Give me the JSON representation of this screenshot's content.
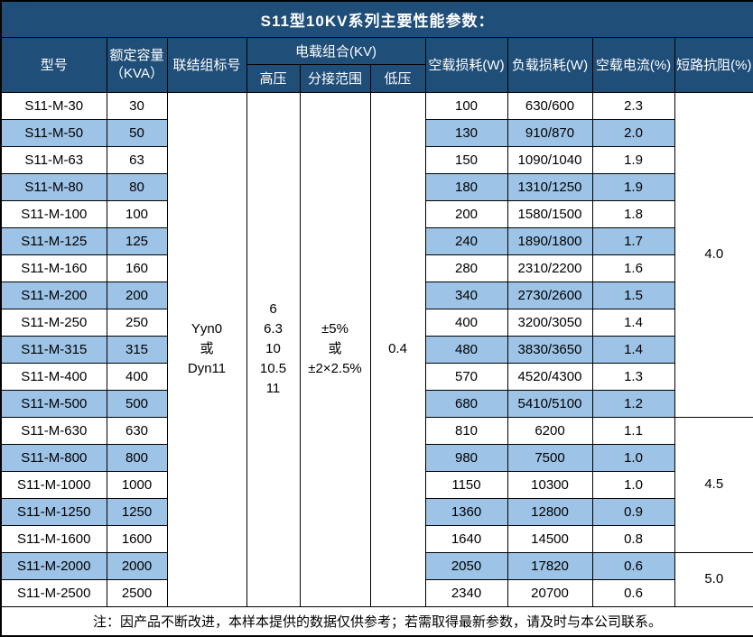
{
  "title": "S11型10KV系列主要性能参数：",
  "colors": {
    "header_bg": "#1F4E79",
    "header_text": "#FFFFFF",
    "row_alt_bg": "#9DC3E6",
    "row_bg": "#FFFFFF",
    "border": "#000000",
    "body_text": "#000000"
  },
  "header": {
    "model": "型号",
    "capacity_line1": "额定容量",
    "capacity_line2": "（KVA）",
    "vector_group": "联结组标号",
    "voltage_combo": "电载组合(KV)",
    "hv": "高压",
    "tap_range": "分接范围",
    "lv": "低压",
    "no_load_loss": "空载损耗(W)",
    "load_loss": "负载损耗(W)",
    "no_load_current": "空载电流(%)",
    "impedance": "短路抗阻(%)"
  },
  "merged": {
    "vector_group_lines": [
      "Yyn0",
      "或",
      "Dyn11"
    ],
    "hv_lines": [
      "6",
      "6.3",
      "10",
      "10.5",
      "11"
    ],
    "tap_range_lines": [
      "±5%",
      "或",
      "±2×2.5%"
    ],
    "lv_lines": [
      "0.4"
    ]
  },
  "rows": [
    {
      "model": "S11-M-30",
      "kva": "30",
      "no_load_loss": "100",
      "load_loss": "630/600",
      "no_load_current": "2.3"
    },
    {
      "model": "S11-M-50",
      "kva": "50",
      "no_load_loss": "130",
      "load_loss": "910/870",
      "no_load_current": "2.0"
    },
    {
      "model": "S11-M-63",
      "kva": "63",
      "no_load_loss": "150",
      "load_loss": "1090/1040",
      "no_load_current": "1.9"
    },
    {
      "model": "S11-M-80",
      "kva": "80",
      "no_load_loss": "180",
      "load_loss": "1310/1250",
      "no_load_current": "1.9"
    },
    {
      "model": "S11-M-100",
      "kva": "100",
      "no_load_loss": "200",
      "load_loss": "1580/1500",
      "no_load_current": "1.8"
    },
    {
      "model": "S11-M-125",
      "kva": "125",
      "no_load_loss": "240",
      "load_loss": "1890/1800",
      "no_load_current": "1.7"
    },
    {
      "model": "S11-M-160",
      "kva": "160",
      "no_load_loss": "280",
      "load_loss": "2310/2200",
      "no_load_current": "1.6"
    },
    {
      "model": "S11-M-200",
      "kva": "200",
      "no_load_loss": "340",
      "load_loss": "2730/2600",
      "no_load_current": "1.5"
    },
    {
      "model": "S11-M-250",
      "kva": "250",
      "no_load_loss": "400",
      "load_loss": "3200/3050",
      "no_load_current": "1.4"
    },
    {
      "model": "S11-M-315",
      "kva": "315",
      "no_load_loss": "480",
      "load_loss": "3830/3650",
      "no_load_current": "1.4"
    },
    {
      "model": "S11-M-400",
      "kva": "400",
      "no_load_loss": "570",
      "load_loss": "4520/4300",
      "no_load_current": "1.3"
    },
    {
      "model": "S11-M-500",
      "kva": "500",
      "no_load_loss": "680",
      "load_loss": "5410/5100",
      "no_load_current": "1.2"
    },
    {
      "model": "S11-M-630",
      "kva": "630",
      "no_load_loss": "810",
      "load_loss": "6200",
      "no_load_current": "1.1"
    },
    {
      "model": "S11-M-800",
      "kva": "800",
      "no_load_loss": "980",
      "load_loss": "7500",
      "no_load_current": "1.0"
    },
    {
      "model": "S11-M-1000",
      "kva": "1000",
      "no_load_loss": "1150",
      "load_loss": "10300",
      "no_load_current": "1.0"
    },
    {
      "model": "S11-M-1250",
      "kva": "1250",
      "no_load_loss": "1360",
      "load_loss": "12800",
      "no_load_current": "0.9"
    },
    {
      "model": "S11-M-1600",
      "kva": "1600",
      "no_load_loss": "1640",
      "load_loss": "14500",
      "no_load_current": "0.8"
    },
    {
      "model": "S11-M-2000",
      "kva": "2000",
      "no_load_loss": "2050",
      "load_loss": "17820",
      "no_load_current": "0.6"
    },
    {
      "model": "S11-M-2500",
      "kva": "2500",
      "no_load_loss": "2340",
      "load_loss": "20700",
      "no_load_current": "0.6"
    }
  ],
  "impedance_groups": [
    {
      "value": "4.0",
      "row_start": 0,
      "row_count": 12
    },
    {
      "value": "4.5",
      "row_start": 12,
      "row_count": 5
    },
    {
      "value": "5.0",
      "row_start": 17,
      "row_count": 2
    }
  ],
  "footer_note": "注：因产品不断改进，本样本提供的数据仅供参考；若需取得最新参数，请及时与本公司联系。"
}
